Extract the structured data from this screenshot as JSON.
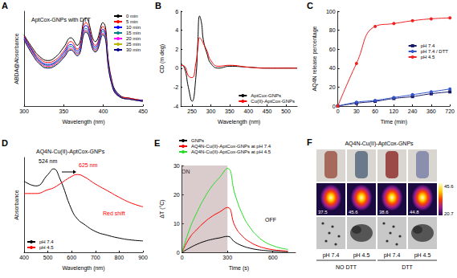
{
  "chart_data": [
    {
      "panel_label": "A",
      "type": "line",
      "title": "AptCox-GNPs with DTT",
      "x_label": "Wavelength (nm)",
      "y_label": "ABDA@Absorbance",
      "x": [
        300,
        310,
        320,
        330,
        340,
        350,
        359,
        367,
        378,
        390,
        399,
        410,
        420,
        435,
        450
      ],
      "series": [
        {
          "name": "0 min",
          "color": "#000000",
          "values": [
            0.75,
            0.62,
            0.52,
            0.48,
            0.52,
            0.62,
            0.72,
            0.64,
            0.93,
            0.68,
            0.88,
            0.3,
            0.12,
            0.08,
            0.06
          ]
        },
        {
          "name": "5 min",
          "color": "#ff0000",
          "values": [
            0.74,
            0.6,
            0.5,
            0.46,
            0.49,
            0.58,
            0.68,
            0.6,
            0.88,
            0.64,
            0.84,
            0.28,
            0.11,
            0.08,
            0.06
          ]
        },
        {
          "name": "10 min",
          "color": "#0000ff",
          "values": [
            0.73,
            0.59,
            0.48,
            0.44,
            0.47,
            0.56,
            0.65,
            0.58,
            0.85,
            0.62,
            0.81,
            0.27,
            0.11,
            0.07,
            0.06
          ]
        },
        {
          "name": "15 min",
          "color": "#008080",
          "values": [
            0.72,
            0.58,
            0.47,
            0.43,
            0.46,
            0.54,
            0.63,
            0.56,
            0.82,
            0.6,
            0.79,
            0.26,
            0.1,
            0.07,
            0.05
          ]
        },
        {
          "name": "20 min",
          "color": "#ff00ff",
          "values": [
            0.71,
            0.57,
            0.46,
            0.42,
            0.45,
            0.53,
            0.61,
            0.55,
            0.8,
            0.59,
            0.77,
            0.26,
            0.1,
            0.07,
            0.05
          ]
        },
        {
          "name": "25 min",
          "color": "#b8b800",
          "values": [
            0.7,
            0.56,
            0.45,
            0.41,
            0.44,
            0.52,
            0.6,
            0.54,
            0.79,
            0.58,
            0.76,
            0.25,
            0.1,
            0.07,
            0.05
          ]
        },
        {
          "name": "30 min",
          "color": "#000080",
          "values": [
            0.7,
            0.55,
            0.44,
            0.4,
            0.43,
            0.51,
            0.59,
            0.53,
            0.78,
            0.57,
            0.75,
            0.25,
            0.1,
            0.07,
            0.05
          ]
        }
      ],
      "xlim": [
        300,
        450
      ],
      "xticks": [
        300,
        350,
        400,
        450
      ],
      "ylim": [
        0,
        1
      ],
      "tick_labels": "x",
      "legend": "top-right",
      "grid": false
    },
    {
      "panel_label": "B",
      "type": "line",
      "x_label": "Wavelength (nm)",
      "y_label": "CD (m deg)",
      "x": [
        220,
        230,
        240,
        250,
        260,
        265,
        270,
        275,
        280,
        290,
        300,
        320,
        350,
        400,
        450,
        500,
        530
      ],
      "series": [
        {
          "name": "AptCox-GNPs",
          "color": "#000000",
          "values": [
            0.5,
            0.0,
            -2.0,
            -3.5,
            -1.0,
            2.5,
            5.5,
            4.8,
            3.0,
            1.5,
            0.5,
            0.0,
            0.2,
            0.1,
            0.0,
            0.0,
            0.0
          ]
        },
        {
          "name": "Cu(II)-AptCox-GNPs",
          "color": "#ff0000",
          "values": [
            0.3,
            0.2,
            -0.8,
            -1.0,
            0.5,
            2.0,
            3.2,
            3.0,
            2.6,
            1.8,
            0.8,
            0.2,
            0.3,
            0.1,
            0.0,
            0.0,
            0.0
          ]
        }
      ],
      "xlim": [
        220,
        530
      ],
      "xticks": [
        250,
        300,
        350,
        400,
        450,
        500
      ],
      "ylim": [
        -4,
        6
      ],
      "yticks": [
        -4,
        -2,
        0,
        2,
        4,
        6
      ],
      "legend": "bottom-right",
      "grid": false
    },
    {
      "panel_label": "C",
      "type": "line",
      "x_label": "Time (min)",
      "y_label": "AQ4N release percentage",
      "categories": [
        "0",
        "30",
        "60",
        "120",
        "240",
        "360",
        "720"
      ],
      "series": [
        {
          "name": "pH 7.4",
          "color": "#1a1a66",
          "marker": "square",
          "values": [
            0,
            3,
            5,
            8,
            10,
            13,
            15
          ]
        },
        {
          "name": "pH 7.4 / DTT",
          "color": "#3355cc",
          "marker": "circle",
          "values": [
            0,
            4,
            6,
            9,
            12,
            15,
            18
          ]
        },
        {
          "name": "pH 4.5",
          "color": "#ee2222",
          "marker": "circle",
          "values": [
            0,
            45,
            84,
            87,
            90,
            92,
            93
          ]
        }
      ],
      "ylim": [
        0,
        100
      ],
      "yticks": [
        0,
        20,
        40,
        60,
        80,
        100
      ],
      "legend": "right",
      "grid": false
    },
    {
      "panel_label": "D",
      "type": "line",
      "title": "AQ4N-Cu(II)-AptCox-GNPs",
      "x_label": "Wavelength (nm)",
      "y_label": "Absorbance",
      "annotations": [
        "524 nm",
        "625 nm",
        "Red shift"
      ],
      "x": [
        400,
        450,
        500,
        524,
        550,
        600,
        625,
        650,
        700,
        750,
        800,
        850,
        900
      ],
      "series": [
        {
          "name": "pH 7.4",
          "color": "#000000",
          "values": [
            0.75,
            0.7,
            0.82,
            0.88,
            0.78,
            0.45,
            0.35,
            0.3,
            0.22,
            0.18,
            0.15,
            0.13,
            0.12
          ]
        },
        {
          "name": "pH 4.5",
          "color": "#ff0000",
          "values": [
            0.62,
            0.62,
            0.66,
            0.68,
            0.72,
            0.8,
            0.82,
            0.8,
            0.72,
            0.65,
            0.58,
            0.52,
            0.48
          ]
        }
      ],
      "xlim": [
        400,
        900
      ],
      "xticks": [
        400,
        500,
        600,
        700,
        800,
        900
      ],
      "ylim": [
        0,
        1
      ],
      "tick_labels": "x",
      "legend": "bottom-left",
      "grid": false
    },
    {
      "panel_label": "E",
      "type": "line",
      "x_label": "Time (s)",
      "y_label": "ΔT (°C)",
      "annotations": [
        "ON",
        "OFF"
      ],
      "shaded_x": [
        0,
        300
      ],
      "x": [
        0,
        50,
        100,
        150,
        200,
        250,
        300,
        350,
        400,
        450,
        500,
        550,
        600,
        650,
        700
      ],
      "series": [
        {
          "name": "GNPs",
          "color": "#000000",
          "values": [
            0,
            1.5,
            2.8,
            3.8,
            4.5,
            5.0,
            5.5,
            3.5,
            2.2,
            1.4,
            0.9,
            0.6,
            0.4,
            0.3,
            0.2
          ]
        },
        {
          "name": "AQ4N-Cu(II)-AptCox-GNPs at pH 7.4",
          "color": "#ff0000",
          "values": [
            0,
            5,
            8,
            10.5,
            12.5,
            14,
            15.5,
            9,
            5.5,
            3.5,
            2.2,
            1.4,
            0.9,
            0.6,
            0.4
          ]
        },
        {
          "name": "AQ4N-Cu(II)-AptCox-GNPs at pH 4.5",
          "color": "#22dd22",
          "values": [
            0,
            8,
            14,
            19,
            23,
            26,
            29,
            20,
            13,
            8.5,
            5.5,
            3.5,
            2.3,
            1.5,
            1.0
          ]
        }
      ],
      "xlim": [
        0,
        750
      ],
      "xticks": [
        0,
        300,
        600
      ],
      "ylim": [
        0,
        30
      ],
      "yticks": [
        0,
        10,
        20,
        30
      ],
      "legend": "top",
      "grid": false
    }
  ],
  "image_panel": {
    "panel_label": "F",
    "title": "AQ4N-Cu(II)-AptCox-GNPs",
    "temperatures": [
      37.5,
      45.6,
      38.6,
      44.8
    ],
    "colorbar": {
      "max": 45.6,
      "min": 20.7
    },
    "ph_labels": [
      "pH 7.4",
      "pH 4.5",
      "pH 7.4",
      "pH 4.5"
    ],
    "groups": [
      "NO DTT",
      "DTT"
    ]
  }
}
